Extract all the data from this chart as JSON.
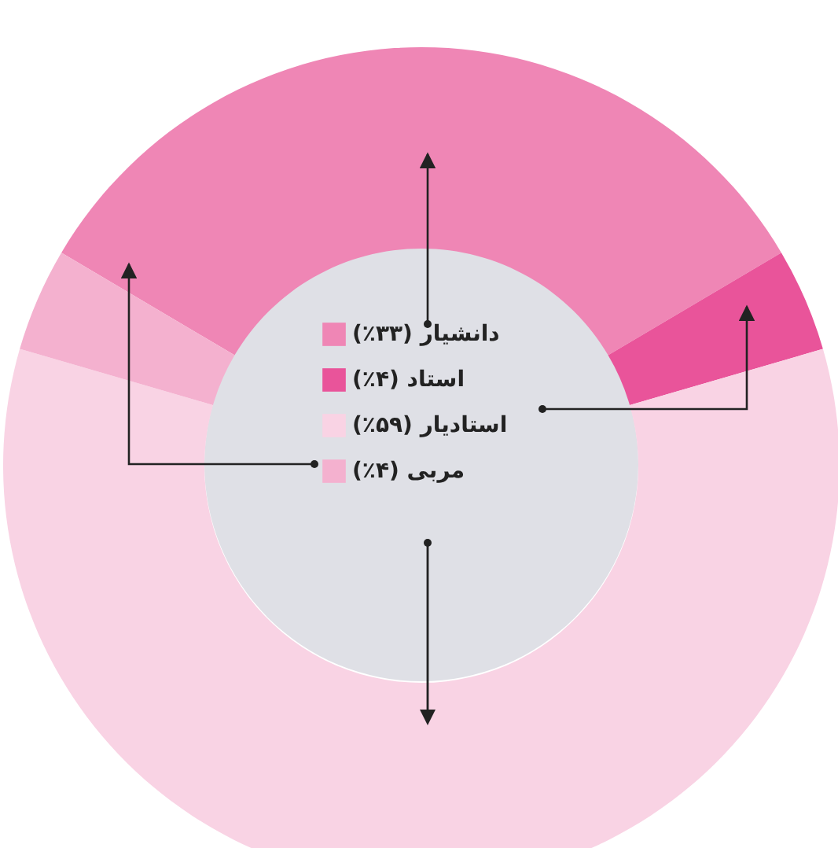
{
  "chart_data": {
    "type": "donut",
    "categories": [
      "دانشیار",
      "استاد",
      "استادیار",
      "مربی"
    ],
    "values": [
      33,
      4,
      59,
      4
    ],
    "value_labels": [
      "(۳۳٪)",
      "(۴٪)",
      "(۵۹٪)",
      "(۴٪)"
    ],
    "colors": [
      "#ef86b5",
      "#e9549a",
      "#f9d3e4",
      "#f4b1cf"
    ],
    "legend": "center"
  }
}
